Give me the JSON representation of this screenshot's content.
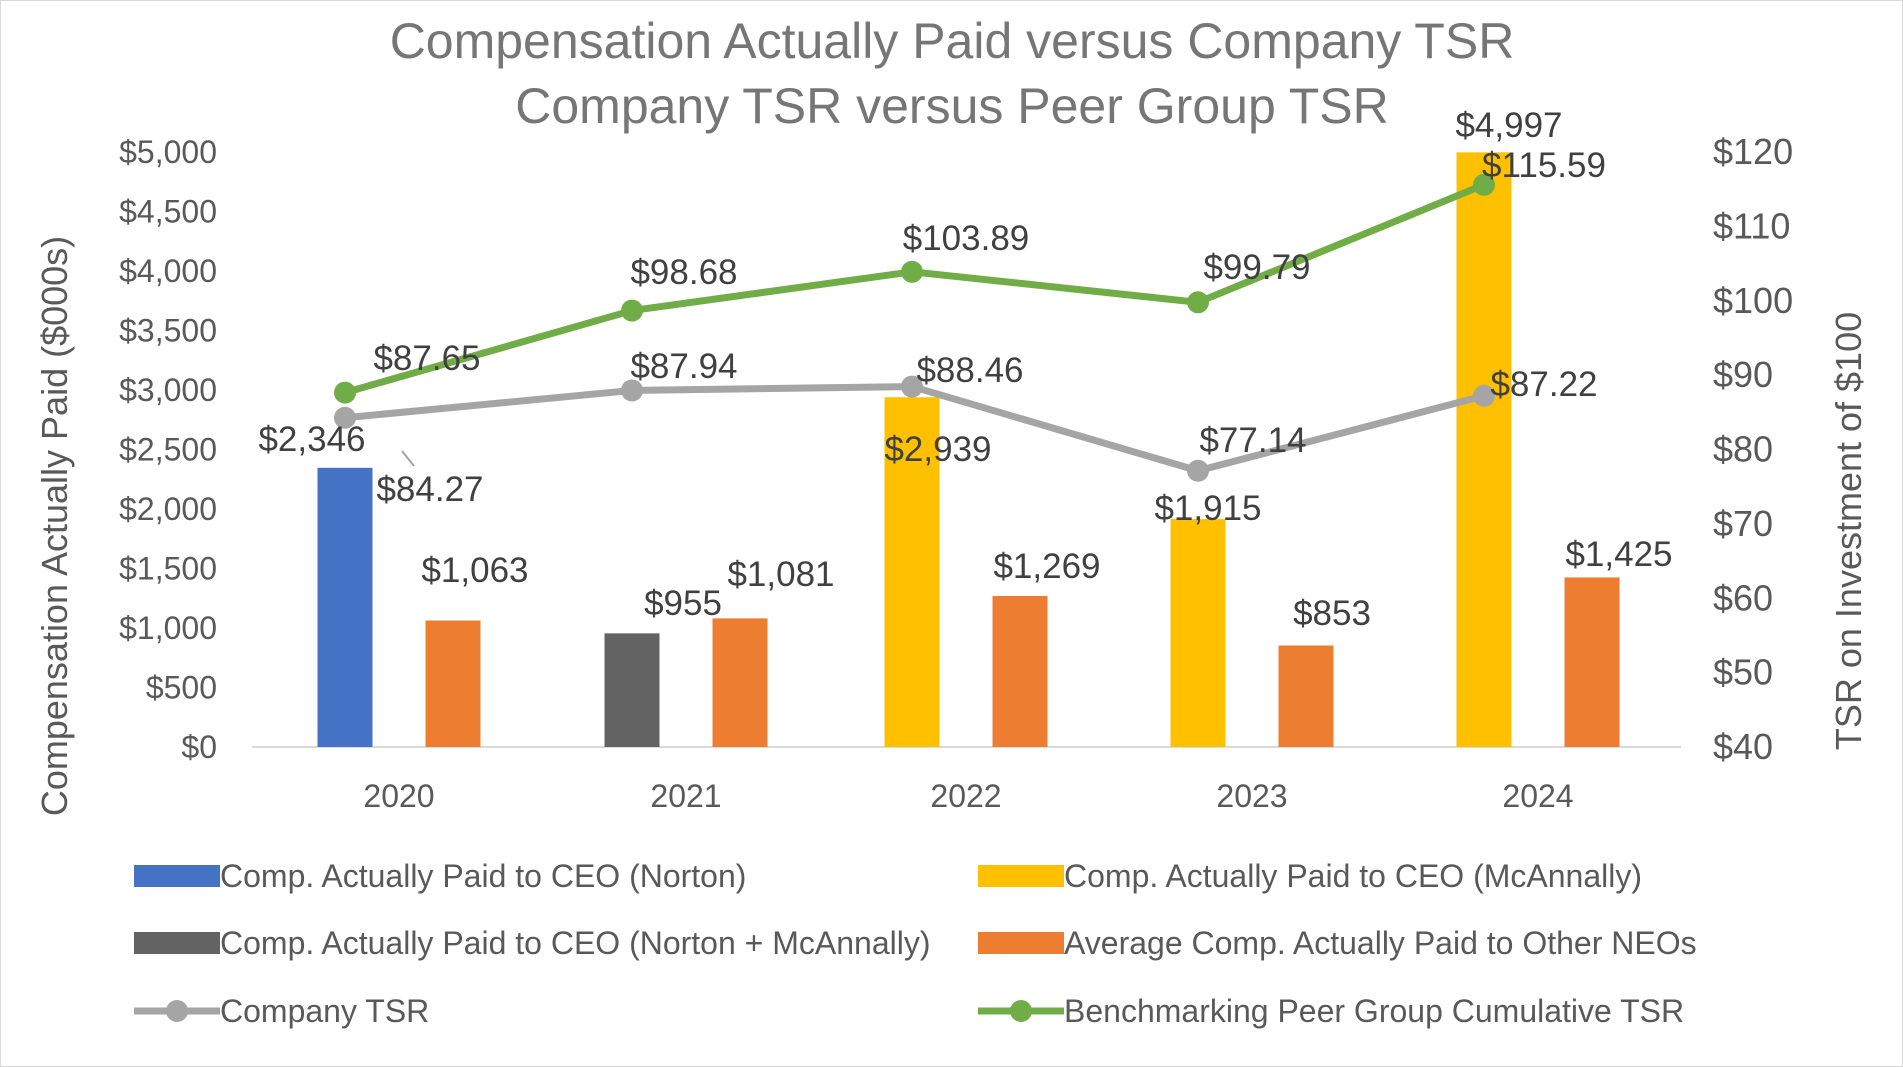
{
  "chart_data": {
    "type": "bar",
    "title": "Compensation Actually Paid versus Company TSR",
    "subtitle": "Company TSR versus Peer Group TSR",
    "categories": [
      "2020",
      "2021",
      "2022",
      "2023",
      "2024"
    ],
    "ylabel": "Compensation Actually Paid ($000s)",
    "y2label": "TSR  on Investment of $100",
    "ylim": [
      0,
      5000
    ],
    "y2lim": [
      40,
      120
    ],
    "y_ticks": [
      "$0",
      "$500",
      "$1,000",
      "$1,500",
      "$2,000",
      "$2,500",
      "$3,000",
      "$3,500",
      "$4,000",
      "$4,500",
      "$5,000"
    ],
    "y2_ticks": [
      "$40",
      "$50",
      "$60",
      "$70",
      "$80",
      "$90",
      "$100",
      "$110",
      "$120"
    ],
    "grid": false,
    "legend_position": "bottom",
    "series": [
      {
        "name": "Comp. Actually Paid to CEO (Norton)",
        "type": "bar",
        "axis": "left",
        "color": "#4472C4",
        "values": [
          2346,
          null,
          null,
          null,
          null
        ],
        "labels": [
          "$2,346",
          "",
          "",
          "",
          ""
        ]
      },
      {
        "name": "Comp. Actually Paid to CEO (McAnnally)",
        "type": "bar",
        "axis": "left",
        "color": "#FFC000",
        "values": [
          null,
          null,
          2939,
          1915,
          4997
        ],
        "labels": [
          "",
          "",
          "$2,939",
          "$1,915",
          "$4,997"
        ]
      },
      {
        "name": "Comp. Actually Paid to CEO (Norton + McAnnally)",
        "type": "bar",
        "axis": "left",
        "color": "#636363",
        "values": [
          null,
          955,
          null,
          null,
          null
        ],
        "labels": [
          "",
          "$955",
          "",
          "",
          ""
        ]
      },
      {
        "name": "Average Comp. Actually Paid to Other NEOs",
        "type": "bar",
        "axis": "left",
        "color": "#ED7D31",
        "values": [
          1063,
          1081,
          1269,
          853,
          1425
        ],
        "labels": [
          "$1,063",
          "$1,081",
          "$1,269",
          "$853",
          "$1,425"
        ]
      },
      {
        "name": "Company TSR",
        "type": "line",
        "axis": "right",
        "color": "#A5A5A5",
        "values": [
          84.27,
          87.94,
          88.46,
          77.14,
          87.22
        ],
        "labels": [
          "$84.27",
          "$87.94",
          "$88.46",
          "$77.14",
          "$87.22"
        ]
      },
      {
        "name": "Benchmarking Peer Group Cumulative TSR",
        "type": "line",
        "axis": "right",
        "color": "#70AD47",
        "values": [
          87.65,
          98.68,
          103.89,
          99.79,
          115.59
        ],
        "labels": [
          "$87.65",
          "$98.68",
          "$103.89",
          "$99.79",
          "$115.59"
        ]
      }
    ],
    "legend": [
      {
        "label": "Comp. Actually Paid to CEO (Norton)",
        "marker": "bar",
        "color": "#4472C4"
      },
      {
        "label": "Comp. Actually Paid to CEO (McAnnally)",
        "marker": "bar",
        "color": "#FFC000"
      },
      {
        "label": "Comp. Actually Paid to CEO (Norton + McAnnally)",
        "marker": "bar",
        "color": "#636363"
      },
      {
        "label": "Average Comp. Actually Paid to Other NEOs",
        "marker": "bar",
        "color": "#ED7D31"
      },
      {
        "label": "Company TSR",
        "marker": "line",
        "color": "#A5A5A5"
      },
      {
        "label": "Benchmarking Peer Group Cumulative TSR",
        "marker": "line",
        "color": "#70AD47"
      }
    ]
  }
}
